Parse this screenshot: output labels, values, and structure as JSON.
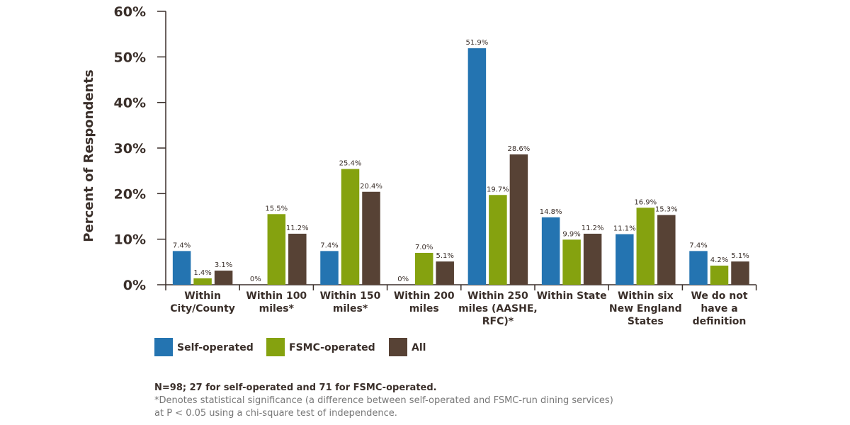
{
  "chart_data": {
    "type": "bar",
    "ylabel": "Percent of Respondents",
    "xlabel": "",
    "ylim": [
      0,
      60
    ],
    "yticks": [
      "0%",
      "10%",
      "20%",
      "30%",
      "40%",
      "50%",
      "60%"
    ],
    "yticks_values": [
      0,
      10,
      20,
      30,
      40,
      50,
      60
    ],
    "categories": [
      [
        "Within",
        "City/County"
      ],
      [
        "Within 100",
        "miles*"
      ],
      [
        "Within 150",
        "miles*"
      ],
      [
        "Within 200",
        "miles"
      ],
      [
        "Within 250",
        "miles (AASHE,",
        "RFC)*"
      ],
      [
        "Within State"
      ],
      [
        "Within six",
        "New England",
        "States"
      ],
      [
        "We do not",
        "have a",
        "definition"
      ]
    ],
    "series": [
      {
        "name": "Self-operated",
        "color": "#2474b1",
        "values": [
          7.4,
          0,
          7.4,
          0,
          51.9,
          14.8,
          11.1,
          7.4
        ],
        "labels": [
          "7.4%",
          "0%",
          "7.4%",
          "0%",
          "51.9%",
          "14.8%",
          "11.1%",
          "7.4%"
        ]
      },
      {
        "name": "FSMC-operated",
        "color": "#85a20f",
        "values": [
          1.4,
          15.5,
          25.4,
          7.0,
          19.7,
          9.9,
          16.9,
          4.2
        ],
        "labels": [
          "1.4%",
          "15.5%",
          "25.4%",
          "7.0%",
          "19.7%",
          "9.9%",
          "16.9%",
          "4.2%"
        ]
      },
      {
        "name": "All",
        "color": "#574235",
        "values": [
          3.1,
          11.2,
          20.4,
          5.1,
          28.6,
          11.2,
          15.3,
          5.1
        ],
        "labels": [
          "3.1%",
          "11.2%",
          "20.4%",
          "5.1%",
          "28.6%",
          "11.2%",
          "15.3%",
          "5.1%"
        ]
      }
    ],
    "legend_position": "bottom-left",
    "grid": false
  },
  "notes": {
    "sample": "N=98; 27 for self-operated and 71 for FSMC-operated.",
    "significance_line1": "*Denotes statistical significance (a difference between self-operated and FSMC-run dining services)",
    "significance_line2": "at P < 0.05 using a chi-square test of independence."
  }
}
